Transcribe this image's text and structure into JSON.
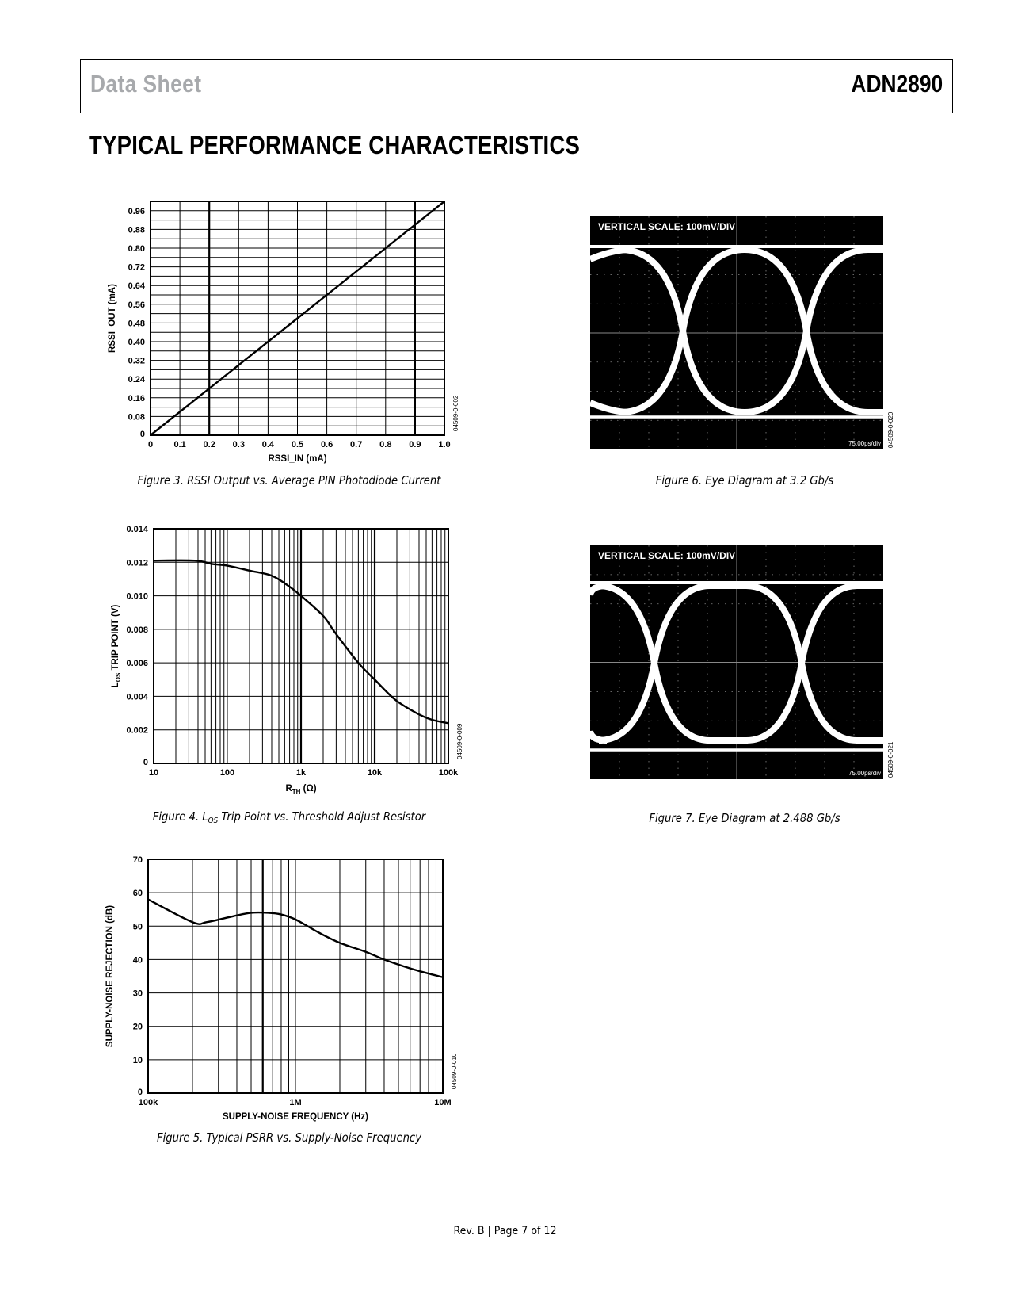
{
  "header": {
    "left": "Data Sheet",
    "right": "ADN2890"
  },
  "section_title": "TYPICAL PERFORMANCE CHARACTERISTICS",
  "footer": "Rev. B | Page 7 of 12",
  "colors": {
    "header_gray": "#a7a9ac",
    "scope_bg": "#000000",
    "trace": "#ffffff"
  },
  "captions": {
    "fig3": "Figure 3. RSSI Output vs. Average PIN Photodiode Current",
    "fig4_a": "Figure 4. L",
    "fig4_sub": "OS",
    "fig4_b": " Trip Point vs. Threshold Adjust Resistor",
    "fig5": "Figure 5. Typical PSRR vs. Supply-Noise Frequency",
    "fig6": "Figure 6. Eye Diagram at 3.2 Gb/s",
    "fig7": "Figure 7. Eye Diagram at 2.488 Gb/s"
  },
  "chart_data": [
    {
      "figure": "Figure 3",
      "type": "line",
      "title": "RSSI Output vs. Average PIN Photodiode Current",
      "xlabel": "RSSI_IN (mA)",
      "ylabel": "RSSI_OUT (mA)",
      "xscale": "linear",
      "xlim": [
        0,
        1.0
      ],
      "ylim": [
        0,
        1.0
      ],
      "grid": true,
      "xticks": [
        0,
        0.1,
        0.2,
        0.3,
        0.4,
        0.5,
        0.6,
        0.7,
        0.8,
        0.9,
        1.0
      ],
      "xtick_labels": [
        "0",
        "0.1",
        "0.2",
        "0.3",
        "0.4",
        "0.5",
        "0.6",
        "0.7",
        "0.8",
        "0.9",
        "1.0"
      ],
      "yticks": [
        0,
        0.08,
        0.16,
        0.24,
        0.32,
        0.4,
        0.48,
        0.56,
        0.64,
        0.72,
        0.8,
        0.88,
        0.96
      ],
      "ytick_labels": [
        "0",
        "0.08",
        "0.16",
        "0.24",
        "0.32",
        "0.40",
        "0.48",
        "0.56",
        "0.64",
        "0.72",
        "0.80",
        "0.88",
        "0.96"
      ],
      "fig_id": "04509-0-002",
      "series": [
        {
          "name": "RSSI_OUT",
          "x": [
            0,
            1.0
          ],
          "y": [
            0,
            1.0
          ]
        }
      ]
    },
    {
      "figure": "Figure 4",
      "type": "line",
      "title": "LOS Trip Point vs. Threshold Adjust Resistor",
      "xlabel_main": "R",
      "xlabel_sub": "TH",
      "xlabel_unit": " (Ω)",
      "ylabel_main": "L",
      "ylabel_sub": "OS",
      "ylabel_rest": " TRIP POINT (V)",
      "xscale": "log",
      "xlim": [
        10,
        100000
      ],
      "ylim": [
        0,
        0.014
      ],
      "grid": true,
      "xticks": [
        10,
        100,
        1000,
        10000,
        100000
      ],
      "xtick_labels": [
        "10",
        "100",
        "1k",
        "10k",
        "100k"
      ],
      "yticks": [
        0,
        0.002,
        0.004,
        0.006,
        0.008,
        0.01,
        0.012,
        0.014
      ],
      "ytick_labels": [
        "0",
        "0.002",
        "0.004",
        "0.006",
        "0.008",
        "0.010",
        "0.012",
        "0.014"
      ],
      "fig_id": "04509-0-009",
      "series": [
        {
          "name": "LOS trip point",
          "x": [
            10,
            36,
            62,
            100,
            200,
            400,
            670,
            1000,
            2000,
            2900,
            6000,
            10000,
            19000,
            37000,
            60000,
            100000
          ],
          "y": [
            0.0121,
            0.0121,
            0.0119,
            0.0118,
            0.0115,
            0.0112,
            0.0106,
            0.01,
            0.0088,
            0.0078,
            0.006,
            0.005,
            0.0038,
            0.003,
            0.0026,
            0.0024
          ]
        }
      ]
    },
    {
      "figure": "Figure 5",
      "type": "line",
      "title": "Typical PSRR vs. Supply-Noise Frequency",
      "xlabel": "SUPPLY-NOISE FREQUENCY (Hz)",
      "ylabel": "SUPPLY-NOISE REJECTION (dB)",
      "xscale": "log",
      "xlim": [
        100000,
        10000000
      ],
      "ylim": [
        0,
        70
      ],
      "grid": true,
      "xticks": [
        100000,
        1000000,
        10000000
      ],
      "xtick_labels": [
        "100k",
        "1M",
        "10M"
      ],
      "yticks": [
        0,
        10,
        20,
        30,
        40,
        50,
        60,
        70
      ],
      "ytick_labels": [
        "0",
        "10",
        "20",
        "30",
        "40",
        "50",
        "60",
        "70"
      ],
      "fig_id": "04509-0-010",
      "series": [
        {
          "name": "PSRR",
          "x": [
            100000,
            200000,
            250000,
            380000,
            500000,
            650000,
            800000,
            1000000,
            1450000,
            2000000,
            3000000,
            4000000,
            5400000,
            7000000,
            10000000
          ],
          "y": [
            58,
            51.2,
            51.2,
            53,
            54,
            54,
            53.5,
            52,
            48,
            45,
            42.3,
            40,
            38,
            36.5,
            34.7
          ]
        }
      ]
    },
    {
      "figure": "Figure 6",
      "type": "line",
      "title": "Eye Diagram at 3.2 Gb/s",
      "annotation": "VERTICAL SCALE: 100mV/DIV",
      "time_scale": "75.00ps/div",
      "fig_id": "04509-0-020"
    },
    {
      "figure": "Figure 7",
      "type": "line",
      "title": "Eye Diagram at 2.488 Gb/s",
      "annotation": "VERTICAL SCALE: 100mV/DIV",
      "time_scale": "75.00ps/div",
      "fig_id": "04509-0-021"
    }
  ]
}
